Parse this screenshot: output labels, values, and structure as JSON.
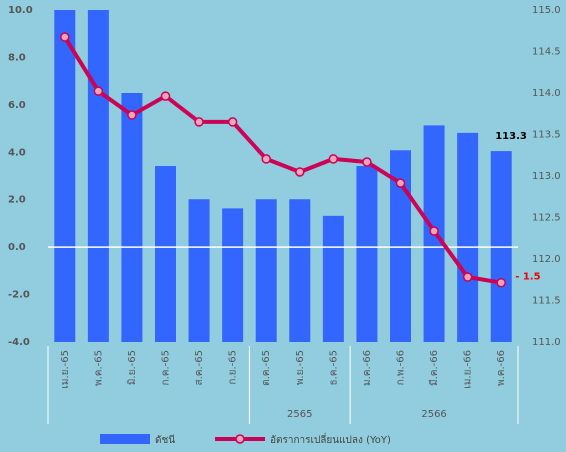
{
  "chart_data": {
    "type": "bar_line",
    "categories": [
      "เม.ย.-65",
      "พ.ค.-65",
      "มิ.ย.-65",
      "ก.ค.-65",
      "ส.ค.-65",
      "ก.ย.-65",
      "ต.ค.-65",
      "พ.ย.-65",
      "ธ.ค.-65",
      "ม.ค.-66",
      "ก.พ.-66",
      "มี.ค.-66",
      "เม.ย.-66",
      "พ.ค.-66"
    ],
    "groups": [
      {
        "label": "2565",
        "start": 6,
        "end": 8
      },
      {
        "label": "2566",
        "start": 9,
        "end": 13
      }
    ],
    "series": [
      {
        "name": "ดัชนี",
        "type": "bar",
        "axis": "y2",
        "color": "#3366ff",
        "values": [
          115.0,
          115.0,
          114.0,
          113.12,
          112.72,
          112.61,
          112.72,
          112.72,
          112.52,
          113.12,
          113.31,
          113.61,
          113.52,
          113.3
        ],
        "value_labels": [
          null,
          null,
          null,
          null,
          null,
          null,
          null,
          null,
          null,
          null,
          null,
          null,
          null,
          "113.3"
        ]
      },
      {
        "name": "อัตราการเปลี่ยนแปลง (YoY)",
        "type": "line",
        "axis": "y",
        "color": "#cc0055",
        "values": [
          8.86,
          6.58,
          5.57,
          6.37,
          5.28,
          5.28,
          3.72,
          3.17,
          3.72,
          3.59,
          2.7,
          0.68,
          -1.26,
          -1.5
        ],
        "value_labels": [
          null,
          null,
          null,
          null,
          null,
          null,
          null,
          null,
          null,
          null,
          null,
          null,
          null,
          "- 1.5"
        ]
      }
    ],
    "ylim": [
      -4,
      10
    ],
    "yticks": [
      {
        "value": -4,
        "label": "-4.0"
      },
      {
        "value": -2,
        "label": "-2.0"
      },
      {
        "value": 0,
        "label": "0.0"
      },
      {
        "value": 2,
        "label": "2.0"
      },
      {
        "value": 4,
        "label": "4.0"
      },
      {
        "value": 6,
        "label": "6.0"
      },
      {
        "value": 8,
        "label": "8.0"
      },
      {
        "value": 10,
        "label": "10.0"
      }
    ],
    "y2lim": [
      111,
      115
    ],
    "y2ticks": [
      {
        "value": 111,
        "label": "111.0"
      },
      {
        "value": 111.5,
        "label": "111.5"
      },
      {
        "value": 112,
        "label": "112.0"
      },
      {
        "value": 112.5,
        "label": "112.5"
      },
      {
        "value": 113,
        "label": "113.0"
      },
      {
        "value": 113.5,
        "label": "113.5"
      },
      {
        "value": 114,
        "label": "114.0"
      },
      {
        "value": 114.5,
        "label": "114.5"
      },
      {
        "value": 115,
        "label": "115.0"
      }
    ],
    "zero_line": true,
    "legend": "bottom"
  }
}
